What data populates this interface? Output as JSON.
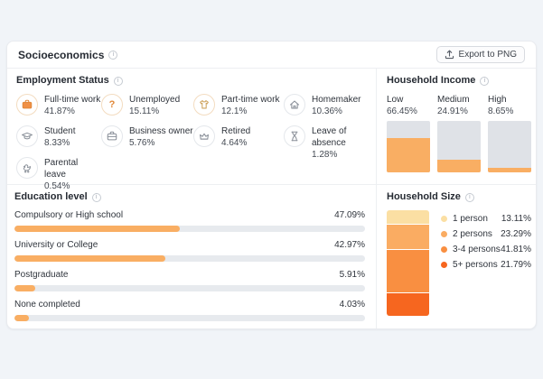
{
  "page": {
    "background": "#f1f4f8",
    "accent_color": "#f9ae63"
  },
  "header": {
    "title": "Socioeconomics",
    "export_button": "Export to PNG"
  },
  "employment": {
    "title": "Employment Status",
    "items": [
      {
        "label": "Full-time work",
        "value": "41.87%",
        "icon": "briefcase-icon"
      },
      {
        "label": "Unemployed",
        "value": "15.11%",
        "icon": "question-icon"
      },
      {
        "label": "Part-time work",
        "value": "12.1%",
        "icon": "tshirt-icon"
      },
      {
        "label": "Homemaker",
        "value": "10.36%",
        "icon": "house-icon"
      },
      {
        "label": "Student",
        "value": "8.33%",
        "icon": "graduation-cap-icon"
      },
      {
        "label": "Business owner",
        "value": "5.76%",
        "icon": "briefcase-icon"
      },
      {
        "label": "Retired",
        "value": "4.64%",
        "icon": "crown-icon"
      },
      {
        "label": "Leave of absence",
        "value": "1.28%",
        "icon": "hourglass-icon"
      },
      {
        "label": "Parental leave",
        "value": "0.54%",
        "icon": "duck-icon"
      }
    ]
  },
  "education": {
    "title": "Education level",
    "items": [
      {
        "label": "Compulsory or High school",
        "value": "47.09%",
        "pct": 47.09
      },
      {
        "label": "University or College",
        "value": "42.97%",
        "pct": 42.97
      },
      {
        "label": "Postgraduate",
        "value": "5.91%",
        "pct": 5.91
      },
      {
        "label": "None completed",
        "value": "4.03%",
        "pct": 4.03
      }
    ]
  },
  "income": {
    "title": "Household Income",
    "items": [
      {
        "label": "Low",
        "value": "66.45%",
        "pct": 66.45
      },
      {
        "label": "Medium",
        "value": "24.91%",
        "pct": 24.91
      },
      {
        "label": "High",
        "value": "8.65%",
        "pct": 8.65
      }
    ]
  },
  "household_size": {
    "title": "Household Size",
    "items": [
      {
        "label": "1 person",
        "value": "13.11%",
        "pct": 13.11,
        "color": "#fbdfa3"
      },
      {
        "label": "2 persons",
        "value": "23.29%",
        "pct": 23.29,
        "color": "#faac62"
      },
      {
        "label": "3-4 persons",
        "value": "41.81%",
        "pct": 41.81,
        "color": "#f98f41"
      },
      {
        "label": "5+ persons",
        "value": "21.79%",
        "pct": 21.79,
        "color": "#f6661f"
      }
    ]
  },
  "chart_data": [
    {
      "type": "table",
      "title": "Employment Status",
      "categories": [
        "Full-time work",
        "Unemployed",
        "Part-time work",
        "Homemaker",
        "Student",
        "Business owner",
        "Retired",
        "Leave of absence",
        "Parental leave"
      ],
      "values": [
        41.87,
        15.11,
        12.1,
        10.36,
        8.33,
        5.76,
        4.64,
        1.28,
        0.54
      ]
    },
    {
      "type": "bar",
      "title": "Household Income",
      "categories": [
        "Low",
        "Medium",
        "High"
      ],
      "values": [
        66.45,
        24.91,
        8.65
      ],
      "ylim": [
        0,
        100
      ],
      "grid": false,
      "orientation": "vertical"
    },
    {
      "type": "bar",
      "title": "Education level",
      "categories": [
        "Compulsory or High school",
        "University or College",
        "Postgraduate",
        "None completed"
      ],
      "values": [
        47.09,
        42.97,
        5.91,
        4.03
      ],
      "ylim": [
        0,
        100
      ],
      "grid": false,
      "orientation": "horizontal"
    },
    {
      "type": "pie",
      "title": "Household Size",
      "categories": [
        "1 person",
        "2 persons",
        "3-4 persons",
        "5+ persons"
      ],
      "values": [
        13.11,
        23.29,
        41.81,
        21.79
      ],
      "colors": [
        "#fbdfa3",
        "#faac62",
        "#f98f41",
        "#f6661f"
      ],
      "legend_position": "right",
      "representation": "stacked-column"
    }
  ]
}
